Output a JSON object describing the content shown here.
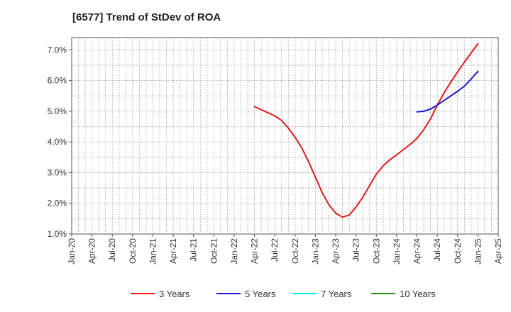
{
  "chart_data": {
    "type": "line",
    "title": "[6577]  Trend of StDev of ROA",
    "xlabel": "",
    "ylabel": "",
    "x_ticks": [
      "Jan-20",
      "Apr-20",
      "Jul-20",
      "Oct-20",
      "Jan-21",
      "Apr-21",
      "Jul-21",
      "Oct-21",
      "Jan-22",
      "Apr-22",
      "Jul-22",
      "Oct-22",
      "Jan-23",
      "Apr-23",
      "Jul-23",
      "Oct-23",
      "Jan-24",
      "Apr-24",
      "Jul-24",
      "Oct-24",
      "Jan-25",
      "Apr-25"
    ],
    "y_ticks": [
      "1.0%",
      "2.0%",
      "3.0%",
      "4.0%",
      "5.0%",
      "6.0%",
      "7.0%"
    ],
    "ylim": [
      1.0,
      7.4
    ],
    "grid": true,
    "legend_position": "bottom",
    "series": [
      {
        "name": "3 Years",
        "color": "#e31a1c",
        "points": [
          [
            "Apr-22",
            5.15
          ],
          [
            "May-22",
            5.05
          ],
          [
            "Jun-22",
            4.95
          ],
          [
            "Jul-22",
            4.85
          ],
          [
            "Aug-22",
            4.7
          ],
          [
            "Sep-22",
            4.45
          ],
          [
            "Oct-22",
            4.15
          ],
          [
            "Nov-22",
            3.8
          ],
          [
            "Dec-22",
            3.35
          ],
          [
            "Jan-23",
            2.85
          ],
          [
            "Feb-23",
            2.35
          ],
          [
            "Mar-23",
            1.95
          ],
          [
            "Apr-23",
            1.68
          ],
          [
            "May-23",
            1.55
          ],
          [
            "Jun-23",
            1.62
          ],
          [
            "Jul-23",
            1.88
          ],
          [
            "Aug-23",
            2.2
          ],
          [
            "Sep-23",
            2.58
          ],
          [
            "Oct-23",
            2.95
          ],
          [
            "Nov-23",
            3.22
          ],
          [
            "Dec-23",
            3.42
          ],
          [
            "Jan-24",
            3.58
          ],
          [
            "Feb-24",
            3.75
          ],
          [
            "Mar-24",
            3.92
          ],
          [
            "Apr-24",
            4.12
          ],
          [
            "May-24",
            4.4
          ],
          [
            "Jun-24",
            4.75
          ],
          [
            "Jul-24",
            5.2
          ],
          [
            "Aug-24",
            5.6
          ],
          [
            "Sep-24",
            5.95
          ],
          [
            "Oct-24",
            6.28
          ],
          [
            "Nov-24",
            6.6
          ],
          [
            "Dec-24",
            6.9
          ],
          [
            "Jan-25",
            7.2
          ]
        ]
      },
      {
        "name": "5 Years",
        "color": "#1a1acc",
        "points": [
          [
            "Apr-24",
            4.98
          ],
          [
            "May-24",
            5.0
          ],
          [
            "Jun-24",
            5.07
          ],
          [
            "Jul-24",
            5.2
          ],
          [
            "Aug-24",
            5.35
          ],
          [
            "Sep-24",
            5.5
          ],
          [
            "Oct-24",
            5.65
          ],
          [
            "Nov-24",
            5.82
          ],
          [
            "Dec-24",
            6.05
          ],
          [
            "Jan-25",
            6.3
          ]
        ]
      },
      {
        "name": "7 Years",
        "color": "#00e5ee",
        "points": []
      },
      {
        "name": "10 Years",
        "color": "#228b22",
        "points": []
      }
    ]
  }
}
